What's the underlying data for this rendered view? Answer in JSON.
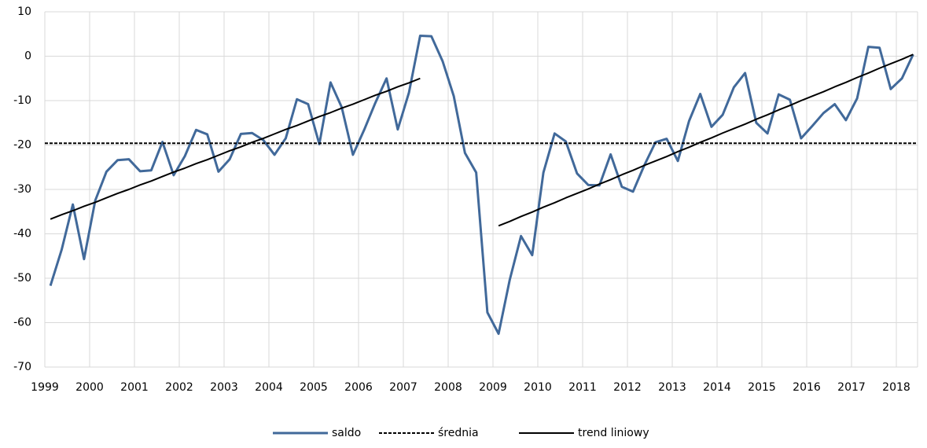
{
  "chart_data": {
    "type": "line",
    "categories": [
      "1999",
      null,
      null,
      null,
      "2000",
      null,
      null,
      null,
      "2001",
      null,
      null,
      null,
      "2002",
      null,
      null,
      null,
      "2003",
      null,
      null,
      null,
      "2004",
      null,
      null,
      null,
      "2005",
      null,
      null,
      null,
      "2006",
      null,
      null,
      null,
      "2007",
      null,
      null,
      null,
      "2008",
      null,
      null,
      null,
      "2009",
      null,
      null,
      null,
      "2010",
      null,
      null,
      null,
      "2011",
      null,
      null,
      null,
      "2012",
      null,
      null,
      null,
      "2013",
      null,
      null,
      null,
      "2014",
      null,
      null,
      null,
      "2015",
      null,
      null,
      null,
      "2016",
      null,
      null,
      null,
      "2017",
      null,
      null,
      null,
      "2018",
      null
    ],
    "series": [
      {
        "name": "saldo",
        "color": "#41699a",
        "values": [
          -51.7,
          -43.6,
          -33.4,
          -45.7,
          -32.5,
          -26,
          -23.4,
          -23.2,
          -25.9,
          -25.7,
          -19.3,
          -26.8,
          -22.5,
          -16.6,
          -17.6,
          -26,
          -23.2,
          -17.5,
          -17.3,
          -18.9,
          -22.2,
          -18.5,
          -9.7,
          -10.8,
          -19.8,
          -5.9,
          -11.5,
          -22.2,
          -16.6,
          -10.5,
          -5,
          -16.5,
          -8.2,
          4.6,
          4.5,
          -1.1,
          -9,
          -21.8,
          -26.2,
          -57.7,
          -62.5,
          -50.3,
          -40.5,
          -44.8,
          -26.2,
          -17.4,
          -19.2,
          -26.4,
          -29,
          -29.1,
          -22.1,
          -29.4,
          -30.5,
          -24.6,
          -19.4,
          -18.6,
          -23.6,
          -14.6,
          -8.5,
          -15.9,
          -13.2,
          -7,
          -3.8,
          -15,
          -17.4,
          -8.6,
          -9.8,
          -18.5,
          -15.7,
          -12.8,
          -10.8,
          -14.4,
          -9.5,
          2.1,
          1.9,
          -7.4,
          -5,
          0.4
        ]
      },
      {
        "name": "średnia",
        "color": "#000000",
        "dashed": true,
        "value": -19.6
      },
      {
        "name": "trend liniowy",
        "color": "#000000",
        "values": [
          -36.7,
          -35.7,
          -34.8,
          -33.8,
          -32.9,
          -31.9,
          -30.9,
          -30.0,
          -29.0,
          -28.1,
          -27.1,
          -26.1,
          -25.2,
          -24.2,
          -23.3,
          -22.3,
          -21.3,
          -20.4,
          -19.4,
          -18.5,
          -17.5,
          -16.5,
          -15.6,
          -14.6,
          -13.6,
          -12.7,
          -11.7,
          -10.8,
          -9.8,
          -8.8,
          -7.9,
          -6.9,
          -6.0,
          -5.0,
          null,
          null,
          null,
          null,
          null,
          null,
          -38.2,
          -37.2,
          -36.1,
          -35.1,
          -34.0,
          -33.0,
          -31.9,
          -30.9,
          -29.9,
          -28.8,
          -27.8,
          -26.7,
          -25.7,
          -24.6,
          -23.6,
          -22.6,
          -21.5,
          -20.5,
          -19.4,
          -18.4,
          -17.3,
          -16.3,
          -15.3,
          -14.2,
          -13.2,
          -12.1,
          -11.1,
          -10.0,
          -9.0,
          -8.0,
          -6.9,
          -5.9,
          -4.8,
          -3.8,
          -2.7,
          -1.7,
          -0.7,
          0.4
        ]
      }
    ],
    "ylim": [
      -70,
      10
    ],
    "yticks": [
      -70,
      -60,
      -50,
      -40,
      -30,
      -20,
      -10,
      0,
      10
    ],
    "grid": true,
    "legend": "bottom"
  }
}
